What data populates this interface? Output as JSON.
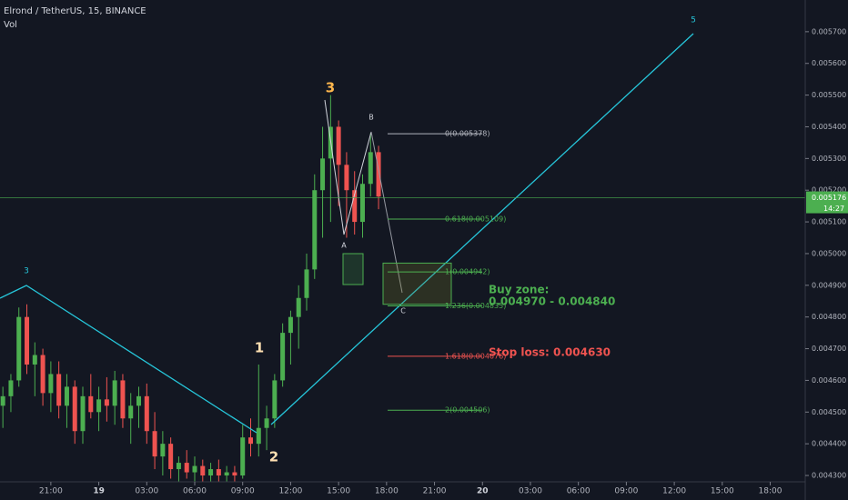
{
  "chart_data": {
    "type": "candlestick",
    "title": "Elrond / TetherUS, 15, BINANCE",
    "subtitle": "Vol",
    "x": [
      -6,
      -5.5,
      -5,
      -4.5,
      -4,
      -3.5,
      -3,
      -2.5,
      -2,
      -1.5,
      -1,
      -0.5,
      0,
      0.5,
      1,
      1.5,
      2,
      2.5,
      3,
      3.5,
      4,
      4.5,
      5,
      5.5,
      6,
      6.5,
      7,
      7.5,
      8,
      8.5,
      9,
      9.5,
      10,
      10.5,
      11,
      11.5,
      12,
      12.5,
      13,
      13.5,
      14,
      14.5,
      15,
      15.5,
      16,
      16.5,
      17,
      17.5
    ],
    "open": [
      0.00452,
      0.00455,
      0.0046,
      0.0048,
      0.00465,
      0.00468,
      0.00456,
      0.00462,
      0.00452,
      0.00458,
      0.00444,
      0.00455,
      0.0045,
      0.00454,
      0.00452,
      0.0046,
      0.00448,
      0.00452,
      0.00455,
      0.00444,
      0.00436,
      0.0044,
      0.00432,
      0.00434,
      0.00431,
      0.00433,
      0.0043,
      0.00432,
      0.0043,
      0.00431,
      0.0043,
      0.00442,
      0.0044,
      0.00445,
      0.00448,
      0.0046,
      0.00475,
      0.0048,
      0.00486,
      0.00495,
      0.0052,
      0.0053,
      0.0054,
      0.00528,
      0.0052,
      0.0051,
      0.00522,
      0.00532
    ],
    "high": [
      0.00458,
      0.00462,
      0.00483,
      0.00484,
      0.00472,
      0.0047,
      0.00466,
      0.00466,
      0.00462,
      0.0046,
      0.00458,
      0.00462,
      0.00458,
      0.00461,
      0.00463,
      0.00462,
      0.00456,
      0.00458,
      0.00459,
      0.0045,
      0.00444,
      0.00442,
      0.00436,
      0.00438,
      0.00436,
      0.00435,
      0.00434,
      0.00435,
      0.00433,
      0.00433,
      0.00446,
      0.00448,
      0.00465,
      0.00452,
      0.00462,
      0.00478,
      0.00482,
      0.0049,
      0.005,
      0.00525,
      0.0054,
      0.0055,
      0.00542,
      0.00532,
      0.00526,
      0.00525,
      0.00538,
      0.00534
    ],
    "low": [
      0.00445,
      0.0045,
      0.00458,
      0.00462,
      0.00455,
      0.00452,
      0.0045,
      0.00448,
      0.00445,
      0.0044,
      0.0044,
      0.00448,
      0.00444,
      0.00447,
      0.00446,
      0.00445,
      0.0044,
      0.00445,
      0.0044,
      0.00432,
      0.0043,
      0.00429,
      0.00428,
      0.00429,
      0.00428,
      0.00428,
      0.00428,
      0.00428,
      0.00428,
      0.00428,
      0.00429,
      0.00436,
      0.00436,
      0.00438,
      0.00445,
      0.00458,
      0.00465,
      0.0047,
      0.00482,
      0.00492,
      0.00505,
      0.0051,
      0.00515,
      0.00505,
      0.00506,
      0.00505,
      0.00518,
      0.00514
    ],
    "close": [
      0.00455,
      0.0046,
      0.0048,
      0.00465,
      0.00468,
      0.00456,
      0.00462,
      0.00452,
      0.00458,
      0.00444,
      0.00455,
      0.0045,
      0.00454,
      0.00452,
      0.0046,
      0.00448,
      0.00452,
      0.00455,
      0.00444,
      0.00436,
      0.0044,
      0.00432,
      0.00434,
      0.00431,
      0.00433,
      0.0043,
      0.00432,
      0.0043,
      0.00431,
      0.0043,
      0.00442,
      0.0044,
      0.00445,
      0.00448,
      0.0046,
      0.00475,
      0.0048,
      0.00486,
      0.00495,
      0.0052,
      0.0053,
      0.0054,
      0.00528,
      0.0052,
      0.0051,
      0.00522,
      0.00532,
      0.00518
    ],
    "up_color": "#4caf50",
    "down_color": "#ef5350",
    "xlim": [
      -6.18,
      44.19
    ],
    "xticks": [
      {
        "value": -3,
        "label": "21:00"
      },
      {
        "value": 0,
        "label": "19"
      },
      {
        "value": 3,
        "label": "03:00"
      },
      {
        "value": 6,
        "label": "06:00"
      },
      {
        "value": 9,
        "label": "09:00"
      },
      {
        "value": 12,
        "label": "12:00"
      },
      {
        "value": 15,
        "label": "15:00"
      },
      {
        "value": 18,
        "label": "18:00"
      },
      {
        "value": 21,
        "label": "21:00"
      },
      {
        "value": 24,
        "label": "20"
      },
      {
        "value": 27,
        "label": "03:00"
      },
      {
        "value": 30,
        "label": "06:00"
      },
      {
        "value": 33,
        "label": "09:00"
      },
      {
        "value": 36,
        "label": "12:00"
      },
      {
        "value": 39,
        "label": "15:00"
      },
      {
        "value": 42,
        "label": "18:00"
      }
    ],
    "ylim": [
      0.00428,
      0.0058
    ],
    "yticks": [
      {
        "value": 0.0043,
        "label": "0.004300"
      },
      {
        "value": 0.0044,
        "label": "0.004400"
      },
      {
        "value": 0.0045,
        "label": "0.004500"
      },
      {
        "value": 0.0046,
        "label": "0.004600"
      },
      {
        "value": 0.0047,
        "label": "0.004700"
      },
      {
        "value": 0.0048,
        "label": "0.004800"
      },
      {
        "value": 0.0049,
        "label": "0.004900"
      },
      {
        "value": 0.005,
        "label": "0.005000"
      },
      {
        "value": 0.0051,
        "label": "0.005100"
      },
      {
        "value": 0.0052,
        "label": "0.005200"
      },
      {
        "value": 0.0053,
        "label": "0.005300"
      },
      {
        "value": 0.0054,
        "label": "0.005400"
      },
      {
        "value": 0.0055,
        "label": "0.005500"
      },
      {
        "value": 0.0056,
        "label": "0.005600"
      },
      {
        "value": 0.0057,
        "label": "0.005700"
      }
    ],
    "last_price": 0.005176,
    "countdown": "14:27",
    "fib_levels": [
      {
        "value": 0.005378,
        "label": "0(0.005378)",
        "color": "#b2b5be"
      },
      {
        "value": 0.005109,
        "label": "0.618(0.005109)",
        "color": "#4caf50"
      },
      {
        "value": 0.004942,
        "label": "1(0.004942)",
        "color": "#4caf50"
      },
      {
        "value": 0.004835,
        "label": "1.236(0.004835)",
        "color": "#4caf50"
      },
      {
        "value": 0.004676,
        "label": "1.618(0.004676)",
        "color": "#ef5350"
      },
      {
        "value": 0.004506,
        "label": "2(0.004506)",
        "color": "#4caf50"
      }
    ],
    "wave_labels": [
      "3",
      "1",
      "2",
      "3",
      "A",
      "B",
      "C",
      "5"
    ],
    "buy_zone": {
      "title": "Buy zone:",
      "range": "0.004970 - 0.004840",
      "high": 0.00497,
      "low": 0.00484
    },
    "stop_loss": "Stop loss: 0.004630"
  }
}
